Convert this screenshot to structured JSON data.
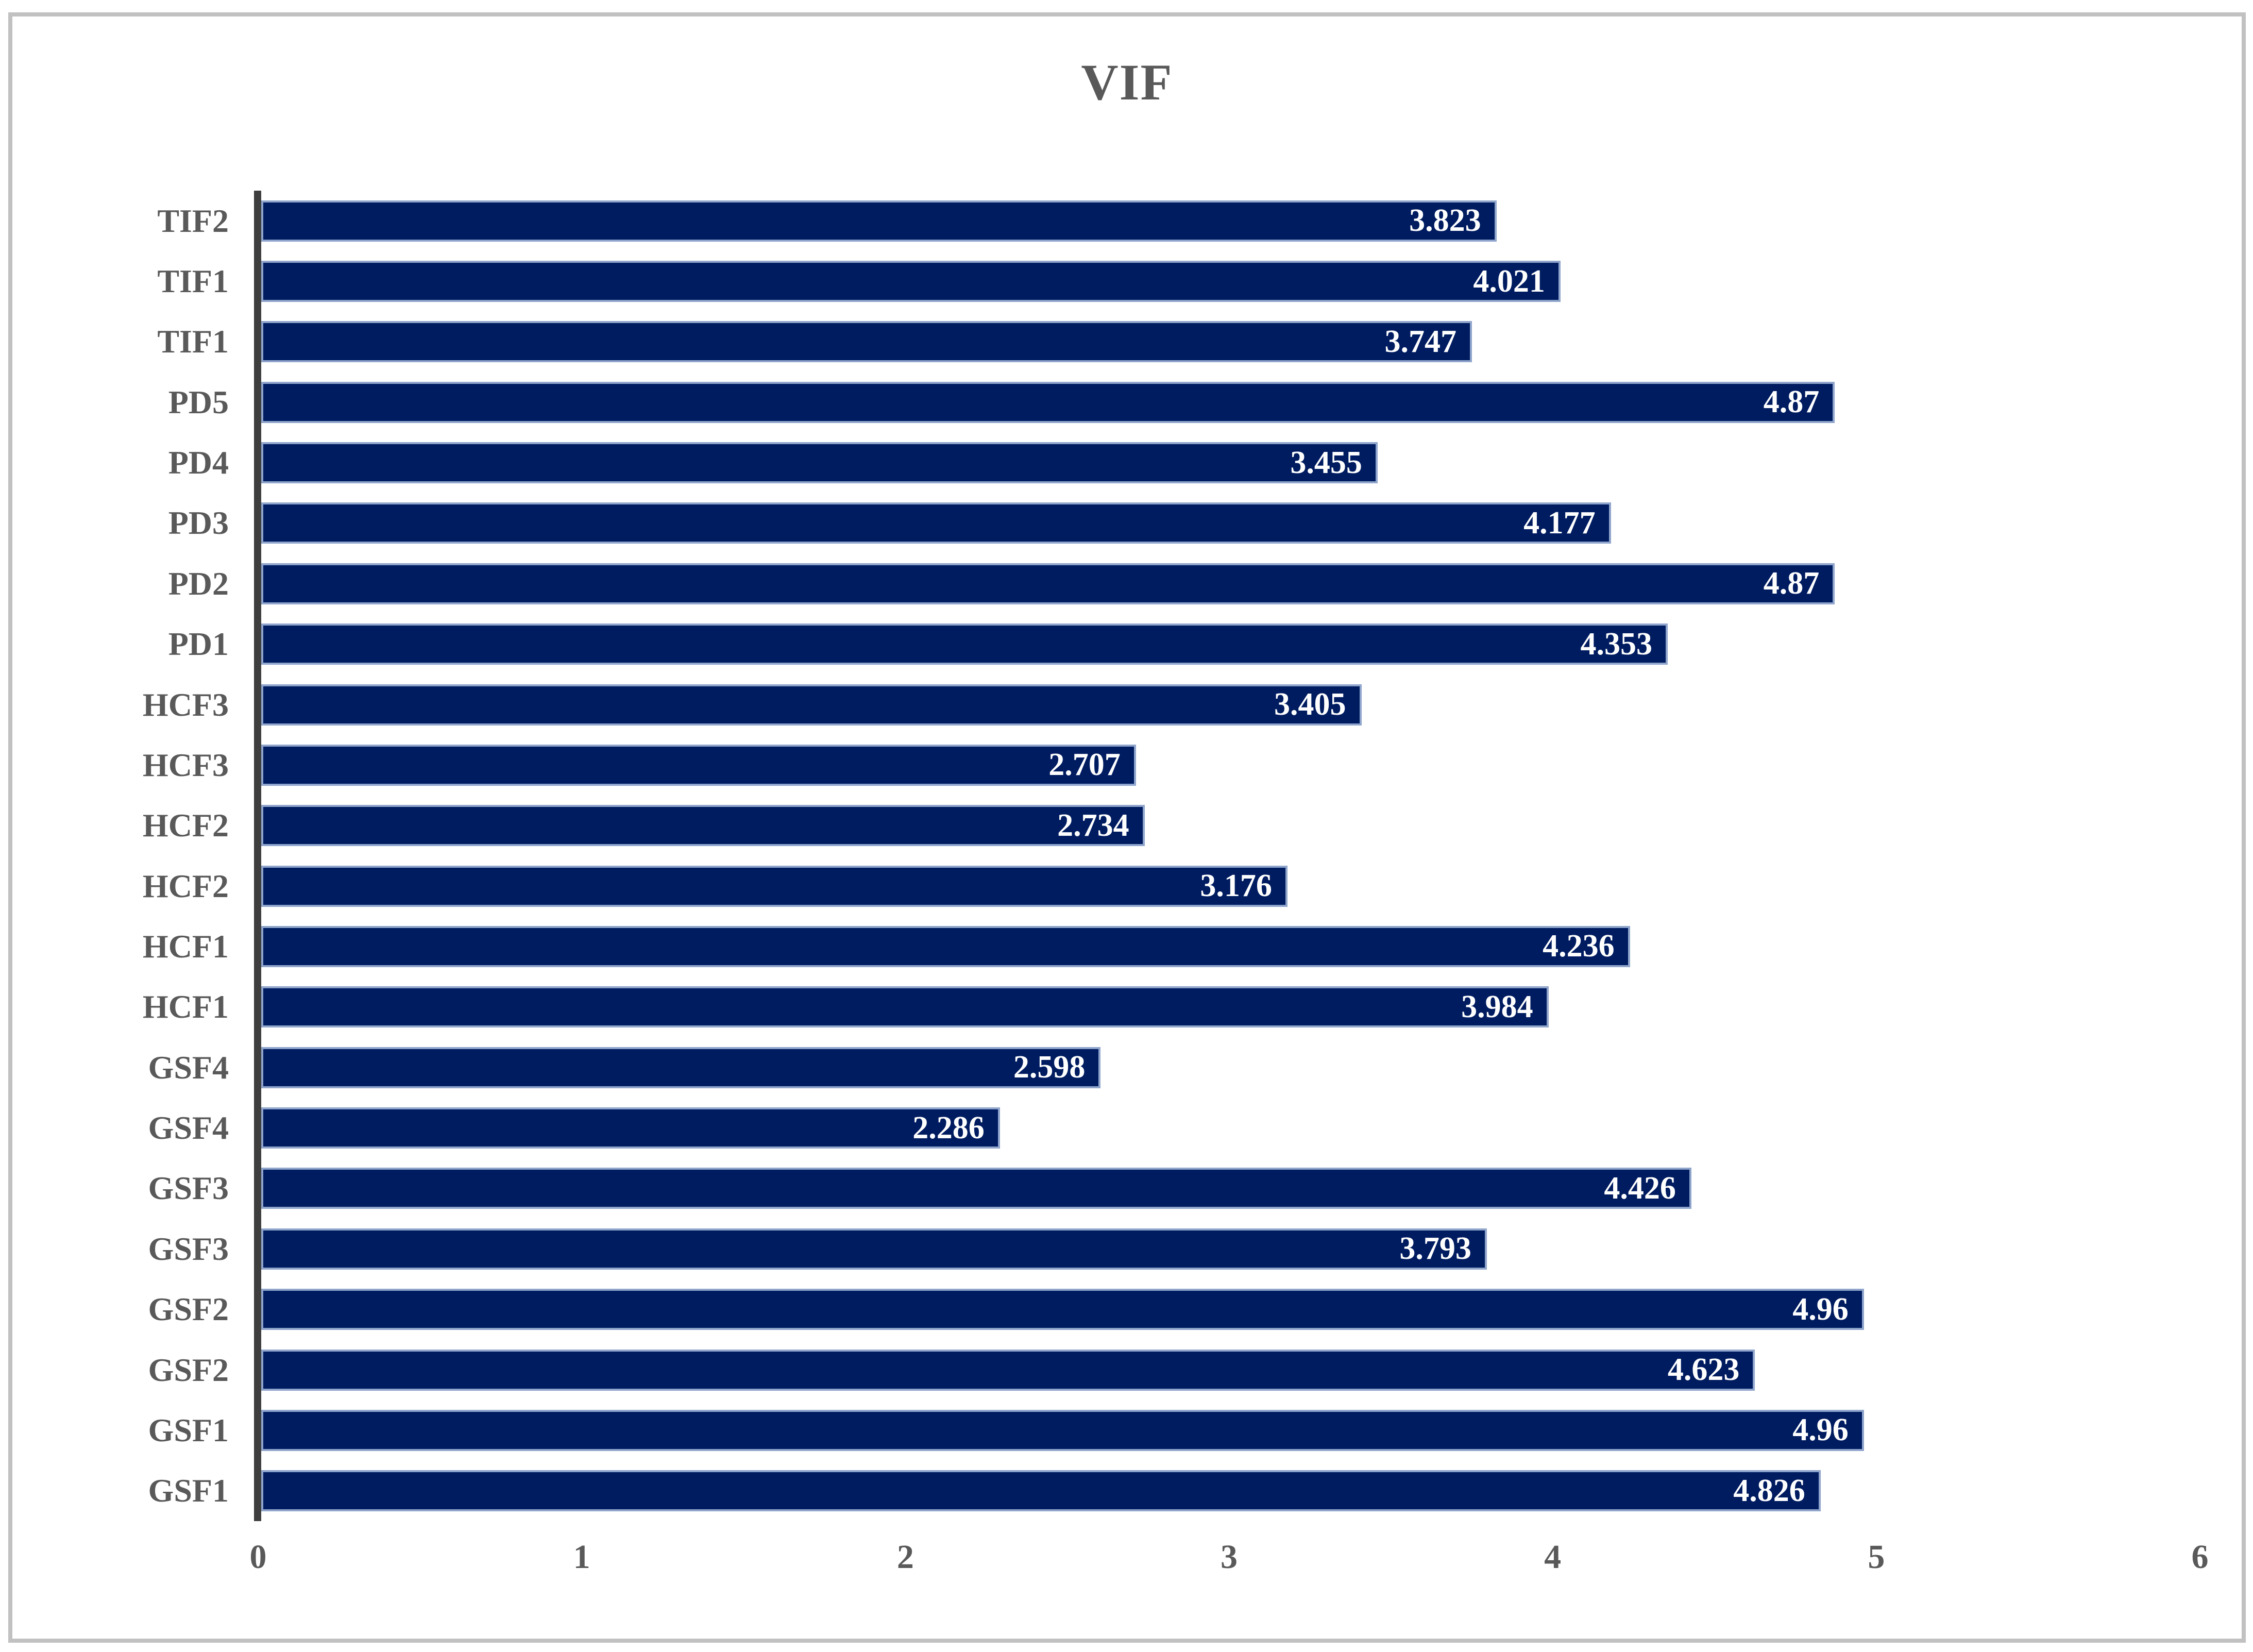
{
  "title": "VIF",
  "colors": {
    "bar_fill": "#001c60",
    "bar_border": "#8fa5cc",
    "axis_line": "#3e3e3e",
    "label_text": "#595959",
    "value_text": "#ffffff",
    "frame_border": "#c1c1c1",
    "background": "#ffffff"
  },
  "chart_data": {
    "type": "bar",
    "orientation": "horizontal",
    "title": "VIF",
    "xlabel": "",
    "ylabel": "",
    "xlim": [
      0,
      6
    ],
    "x_ticks": [
      "0",
      "1",
      "2",
      "3",
      "4",
      "5",
      "6"
    ],
    "grid": false,
    "legend": false,
    "value_labels_position": "inside-end",
    "rows": [
      {
        "label": "TIF2",
        "value": 3.823,
        "value_label": "3.823"
      },
      {
        "label": "TIF1",
        "value": 4.021,
        "value_label": "4.021"
      },
      {
        "label": "TIF1",
        "value": 3.747,
        "value_label": "3.747"
      },
      {
        "label": "PD5",
        "value": 4.87,
        "value_label": "4.87"
      },
      {
        "label": "PD4",
        "value": 3.455,
        "value_label": "3.455"
      },
      {
        "label": "PD3",
        "value": 4.177,
        "value_label": "4.177"
      },
      {
        "label": "PD2",
        "value": 4.87,
        "value_label": "4.87"
      },
      {
        "label": "PD1",
        "value": 4.353,
        "value_label": "4.353"
      },
      {
        "label": "HCF3",
        "value": 3.405,
        "value_label": "3.405"
      },
      {
        "label": "HCF3",
        "value": 2.707,
        "value_label": "2.707"
      },
      {
        "label": "HCF2",
        "value": 2.734,
        "value_label": "2.734"
      },
      {
        "label": "HCF2",
        "value": 3.176,
        "value_label": "3.176"
      },
      {
        "label": "HCF1",
        "value": 4.236,
        "value_label": "4.236"
      },
      {
        "label": "HCF1",
        "value": 3.984,
        "value_label": "3.984"
      },
      {
        "label": "GSF4",
        "value": 2.598,
        "value_label": "2.598"
      },
      {
        "label": "GSF4",
        "value": 2.286,
        "value_label": "2.286"
      },
      {
        "label": "GSF3",
        "value": 4.426,
        "value_label": "4.426"
      },
      {
        "label": "GSF3",
        "value": 3.793,
        "value_label": "3.793"
      },
      {
        "label": "GSF2",
        "value": 4.96,
        "value_label": "4.96"
      },
      {
        "label": "GSF2",
        "value": 4.623,
        "value_label": "4.623"
      },
      {
        "label": "GSF1",
        "value": 4.96,
        "value_label": "4.96"
      },
      {
        "label": "GSF1",
        "value": 4.826,
        "value_label": "4.826"
      }
    ]
  }
}
